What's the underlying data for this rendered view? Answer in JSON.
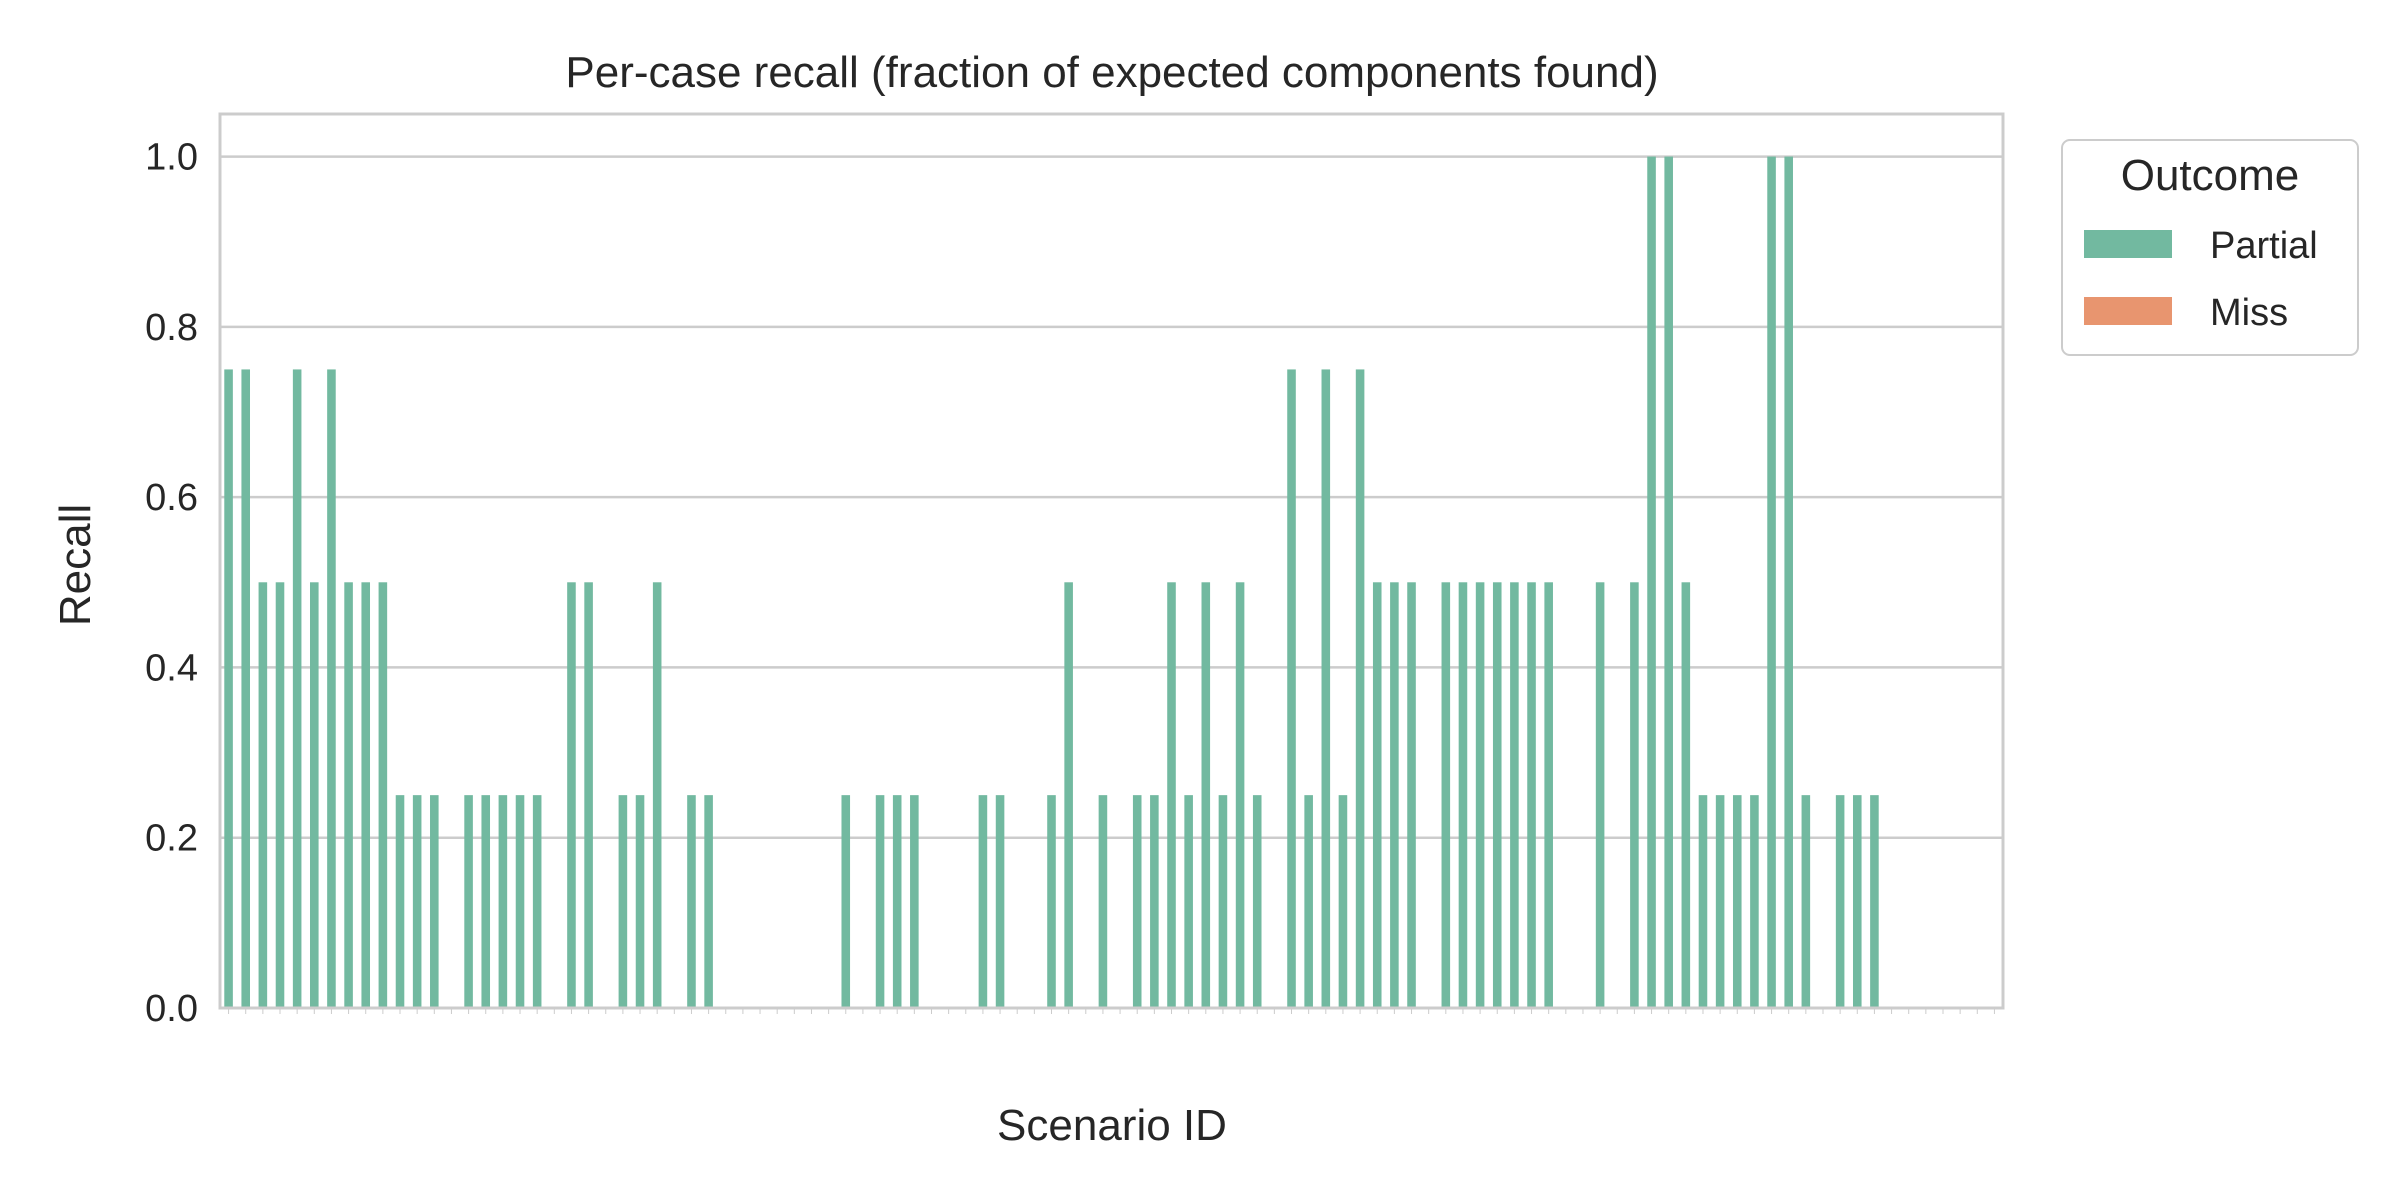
{
  "chart_data": {
    "type": "bar",
    "title": "Per-case recall (fraction of expected components found)",
    "xlabel": "Scenario ID",
    "ylabel": "Recall",
    "ylim": [
      0,
      1.05
    ],
    "yticks": [
      "0.0",
      "0.2",
      "0.4",
      "0.6",
      "0.8",
      "1.0"
    ],
    "grid": true,
    "legend": {
      "title": "Outcome",
      "placement": "outside-top-right"
    },
    "series": [
      {
        "name": "Partial",
        "color": "#72b9a0",
        "values": [
          0.75,
          0.75,
          0.5,
          0.5,
          0.75,
          0.5,
          0.75,
          0.5,
          0.5,
          0.5,
          0.25,
          0.25,
          0.25,
          0,
          0.25,
          0.25,
          0.25,
          0.25,
          0.25,
          0,
          0.5,
          0.5,
          0,
          0.25,
          0.25,
          0.5,
          0,
          0.25,
          0.25,
          0,
          0,
          0,
          0,
          0,
          0,
          0,
          0.25,
          0,
          0.25,
          0.25,
          0.25,
          0,
          0,
          0,
          0.25,
          0.25,
          0,
          0,
          0.25,
          0.5,
          0,
          0.25,
          0,
          0.25,
          0.25,
          0.5,
          0.25,
          0.5,
          0.25,
          0.5,
          0.25,
          0,
          0.75,
          0.25,
          0.75,
          0.25,
          0.75,
          0.5,
          0.5,
          0.5,
          0,
          0.5,
          0.5,
          0.5,
          0.5,
          0.5,
          0.5,
          0.5,
          0,
          0,
          0.5,
          0,
          0.5,
          1.0,
          1.0,
          0.5,
          0.25,
          0.25,
          0.25,
          0.25,
          1.0,
          1.0,
          0.25,
          0,
          0.25,
          0.25,
          0.25,
          0,
          0,
          0,
          0,
          0,
          0,
          0
        ]
      },
      {
        "name": "Miss",
        "color": "#e8956f",
        "values": []
      }
    ]
  }
}
